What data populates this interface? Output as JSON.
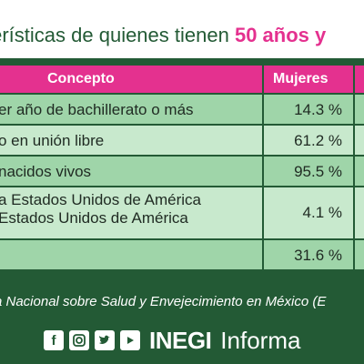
{
  "title": {
    "text_prefix": "terísticas de quienes tienen ",
    "highlight": "50 años y"
  },
  "table": {
    "headers": [
      "Concepto",
      "Mujeres"
    ],
    "rows": [
      {
        "concept": "er año de bachillerato o más",
        "value": "14.3 %"
      },
      {
        "concept": "o en unión libre",
        "value": "61.2 %"
      },
      {
        "concept": "nacidos vivos",
        "value": "95.5 %"
      },
      {
        "concept_line1": "a Estados Unidos de América",
        "concept_line2": "Estados Unidos de América",
        "value": "4.1 %"
      },
      {
        "concept": "",
        "value": "31.6 %"
      }
    ]
  },
  "source": "a Nacional sobre Salud y Envejecimiento en México (E",
  "footer": {
    "icons": [
      "facebook-icon",
      "instagram-icon",
      "twitter-icon",
      "youtube-icon"
    ],
    "brand": "INEGI",
    "brand_suffix": "Informa"
  },
  "colors": {
    "green": "#235a35",
    "pink": "#e4318f",
    "row_green": "#9fd5a9",
    "row_light": "#c8e9cd"
  }
}
